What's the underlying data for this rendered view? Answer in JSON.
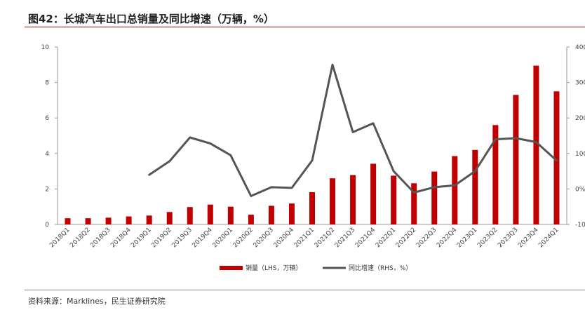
{
  "header": {
    "title": "图42：长城汽车出口总销量及同比增速（万辆，%）"
  },
  "footer": {
    "source": "资料来源：Marklines，民生证券研究院"
  },
  "colors": {
    "bar": "#c00000",
    "line": "#555555",
    "rule": "#8c1a1a"
  },
  "chart_data": {
    "type": "bar",
    "title": "长城汽车出口总销量及同比增速（万辆，%）",
    "categories": [
      "2018Q1",
      "2018Q2",
      "2018Q3",
      "2018Q4",
      "2019Q1",
      "2019Q2",
      "2019Q3",
      "2019Q4",
      "2020Q1",
      "2020Q2",
      "2020Q3",
      "2020Q4",
      "2021Q1",
      "2021Q2",
      "2021Q3",
      "2021Q4",
      "2022Q1",
      "2022Q2",
      "2022Q3",
      "2022Q4",
      "2023Q1",
      "2023Q2",
      "2023Q3",
      "2023Q4",
      "2024Q1"
    ],
    "series": [
      {
        "name": "销量（LHS，万辆）",
        "type": "bar",
        "axis": "left",
        "values": [
          0.35,
          0.35,
          0.38,
          0.45,
          0.5,
          0.7,
          0.98,
          1.12,
          1.0,
          0.55,
          1.05,
          1.18,
          1.82,
          2.6,
          2.78,
          3.42,
          2.75,
          2.32,
          2.98,
          3.85,
          4.2,
          5.6,
          7.3,
          8.95,
          7.5
        ]
      },
      {
        "name": "同比增速（RHS，%）",
        "type": "line",
        "axis": "right",
        "values": [
          null,
          null,
          null,
          null,
          40,
          78,
          145,
          128,
          95,
          -20,
          5,
          3,
          80,
          350,
          160,
          185,
          50,
          -10,
          5,
          10,
          50,
          140,
          143,
          132,
          80
        ]
      }
    ],
    "y_left": {
      "min": 0,
      "max": 10,
      "ticks": [
        0,
        2,
        4,
        6,
        8,
        10
      ]
    },
    "y_right": {
      "min": -100,
      "max": 400,
      "ticks": [
        "-100%",
        "0%",
        "100%",
        "200%",
        "300%",
        "400%"
      ]
    },
    "legend": [
      "销量（LHS，万辆）",
      "同比增速（RHS，%）"
    ],
    "legend_position": "bottom-center"
  }
}
